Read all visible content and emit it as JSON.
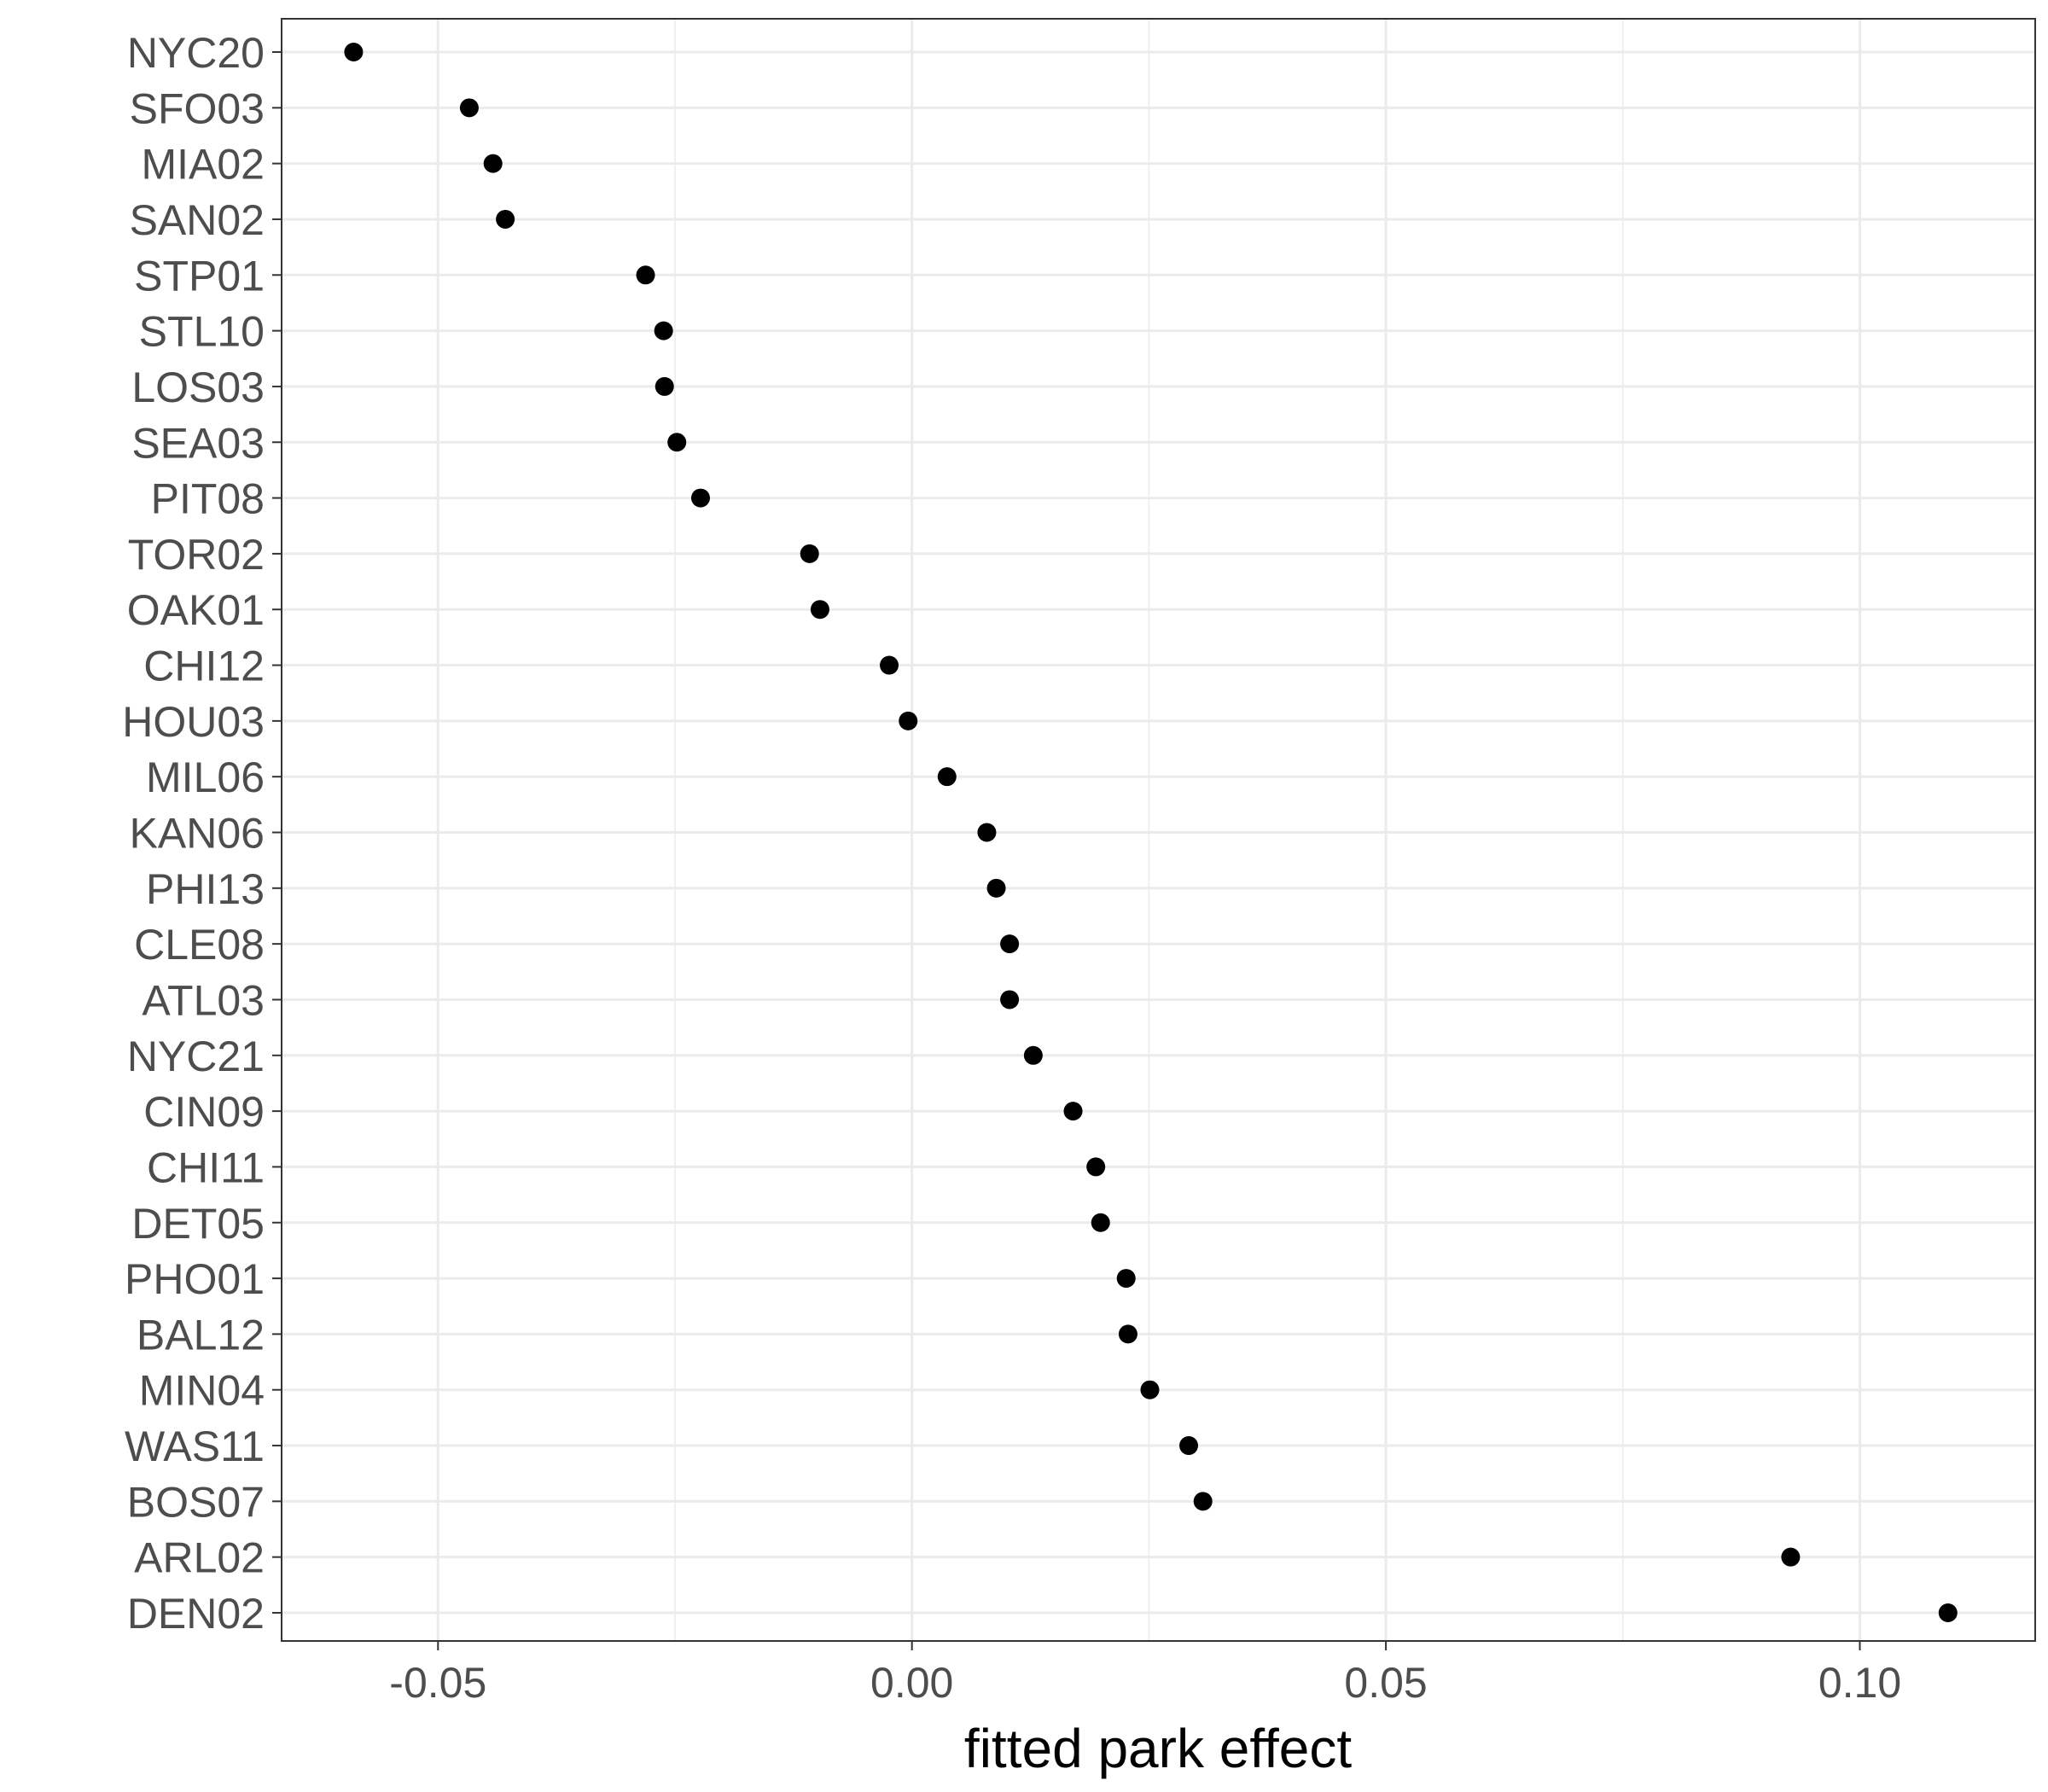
{
  "chart_data": {
    "type": "scatter",
    "title": "",
    "xlabel": "fitted park effect",
    "ylabel": "",
    "xlim": [
      -0.0665,
      0.1185
    ],
    "x_ticks": [
      -0.05,
      0.0,
      0.05,
      0.1
    ],
    "x_tick_labels": [
      "-0.05",
      "0.00",
      "0.05",
      "0.10"
    ],
    "grid": true,
    "legend": "none",
    "colors": {
      "point": "#000000",
      "grid": "#ebebeb",
      "panel_border": "#333333",
      "tick_label": "#4d4d4d"
    },
    "categories": [
      "NYC20",
      "SFO03",
      "MIA02",
      "SAN02",
      "STP01",
      "STL10",
      "LOS03",
      "SEA03",
      "PIT08",
      "TOR02",
      "OAK01",
      "CHI12",
      "HOU03",
      "MIL06",
      "KAN06",
      "PHI13",
      "CLE08",
      "ATL03",
      "NYC21",
      "CIN09",
      "CHI11",
      "DET05",
      "PHO01",
      "BAL12",
      "MIN04",
      "WAS11",
      "BOS07",
      "ARL02",
      "DEN02"
    ],
    "values": [
      -0.0589,
      -0.0467,
      -0.0442,
      -0.0429,
      -0.0281,
      -0.0262,
      -0.0261,
      -0.0248,
      -0.0223,
      -0.0108,
      -0.0097,
      -0.0024,
      -0.0004,
      0.0037,
      0.0079,
      0.0089,
      0.0103,
      0.0103,
      0.0128,
      0.017,
      0.0194,
      0.0199,
      0.0226,
      0.0228,
      0.0251,
      0.0292,
      0.0307,
      0.0927,
      0.1093
    ]
  }
}
